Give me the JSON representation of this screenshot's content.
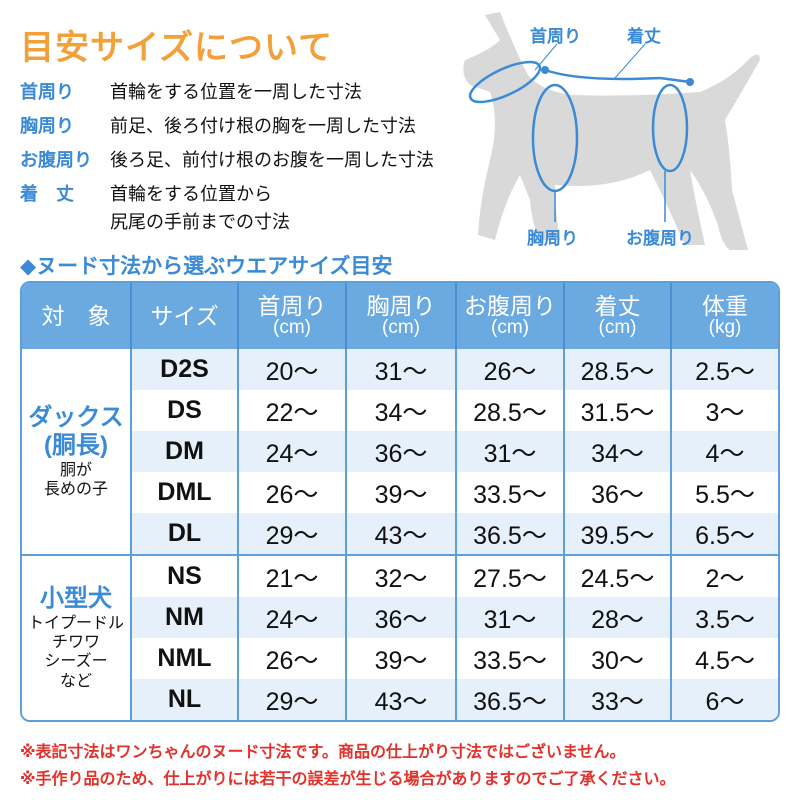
{
  "title": "目安サイズについて",
  "definitions": [
    {
      "term": "首周り",
      "desc": [
        "首輪をする位置を一周した寸法"
      ]
    },
    {
      "term": "胸周り",
      "desc": [
        "前足、後ろ付け根の胸を一周した寸法"
      ]
    },
    {
      "term": "お腹周り",
      "desc": [
        "後ろ足、前付け根のお腹を一周した寸法"
      ]
    },
    {
      "term": "着　丈",
      "desc": [
        "首輪をする位置から",
        "尻尾の手前までの寸法"
      ]
    }
  ],
  "diagram_labels": {
    "neck": "首周り",
    "length": "着丈",
    "chest": "胸周り",
    "belly": "お腹周り"
  },
  "colors": {
    "title": "#f2a13a",
    "accent": "#3a8ad6",
    "header_bg": "#6aaae0",
    "row_alt": "#e5f0fa",
    "note": "#e2302b",
    "dog": "#d9d9d9"
  },
  "subtitle": "◆ヌード寸法から選ぶウエアサイズ目安",
  "table": {
    "headers": [
      {
        "label": "対　象",
        "unit": ""
      },
      {
        "label": "サイズ",
        "unit": ""
      },
      {
        "label": "首周り",
        "unit": "(cm)"
      },
      {
        "label": "胸周り",
        "unit": "(cm)"
      },
      {
        "label": "お腹周り",
        "unit": "(cm)"
      },
      {
        "label": "着丈",
        "unit": "(cm)"
      },
      {
        "label": "体重",
        "unit": "(kg)"
      }
    ],
    "groups": [
      {
        "name": [
          "ダックス",
          "(胴長)"
        ],
        "sub": [
          "胴が",
          "長めの子"
        ],
        "rows": [
          [
            "D2S",
            "20〜",
            "31〜",
            "26〜",
            "28.5〜",
            "2.5〜"
          ],
          [
            "DS",
            "22〜",
            "34〜",
            "28.5〜",
            "31.5〜",
            "3〜"
          ],
          [
            "DM",
            "24〜",
            "36〜",
            "31〜",
            "34〜",
            "4〜"
          ],
          [
            "DML",
            "26〜",
            "39〜",
            "33.5〜",
            "36〜",
            "5.5〜"
          ],
          [
            "DL",
            "29〜",
            "43〜",
            "36.5〜",
            "39.5〜",
            "6.5〜"
          ]
        ]
      },
      {
        "name": [
          "小型犬"
        ],
        "sub": [
          "トイプードル",
          "チワワ",
          "シーズー",
          "など"
        ],
        "rows": [
          [
            "NS",
            "21〜",
            "32〜",
            "27.5〜",
            "24.5〜",
            "2〜"
          ],
          [
            "NM",
            "24〜",
            "36〜",
            "31〜",
            "28〜",
            "3.5〜"
          ],
          [
            "NML",
            "26〜",
            "39〜",
            "33.5〜",
            "30〜",
            "4.5〜"
          ],
          [
            "NL",
            "29〜",
            "43〜",
            "36.5〜",
            "33〜",
            "6〜"
          ]
        ]
      }
    ]
  },
  "notes": [
    "※表記寸法はワンちゃんのヌード寸法です。商品の仕上がり寸法ではございません。",
    "※手作り品のため、仕上がりには若干の誤差が生じる場合がありますのでご了承ください。"
  ]
}
